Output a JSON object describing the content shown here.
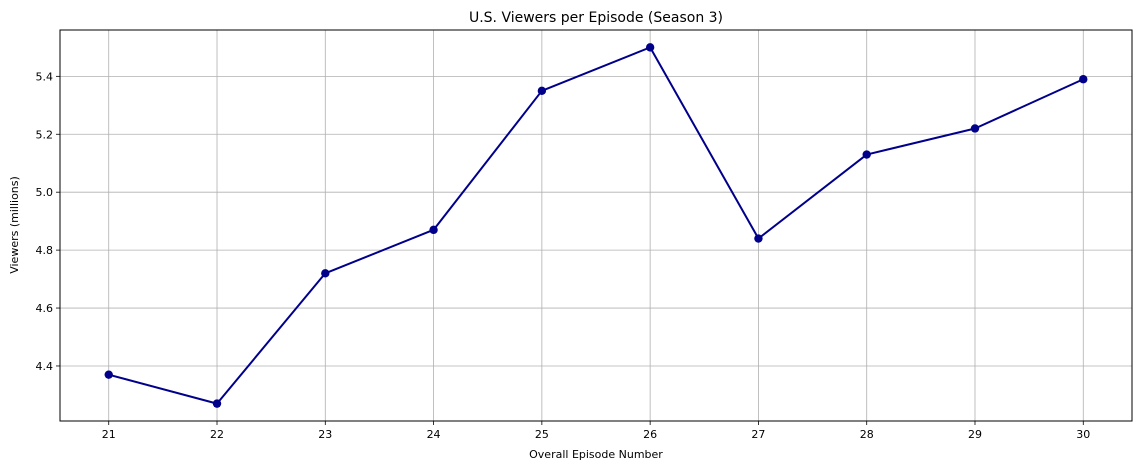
{
  "chart_data": {
    "type": "line",
    "title": "U.S. Viewers per Episode (Season 3)",
    "xlabel": "Overall Episode Number",
    "ylabel": "Viewers (millions)",
    "x": [
      21,
      22,
      23,
      24,
      25,
      26,
      27,
      28,
      29,
      30
    ],
    "series": [
      {
        "values": [
          4.37,
          4.27,
          4.72,
          4.87,
          5.35,
          5.5,
          4.84,
          5.13,
          5.22,
          5.39
        ]
      }
    ],
    "xlim": [
      20.55,
      30.45
    ],
    "ylim": [
      4.21,
      5.56
    ],
    "xticks": [
      "21",
      "22",
      "23",
      "24",
      "25",
      "26",
      "27",
      "28",
      "29",
      "30"
    ],
    "yticks": [
      "4.4",
      "4.6",
      "4.8",
      "5.0",
      "5.2",
      "5.4"
    ],
    "ytick_values": [
      4.4,
      4.6,
      4.8,
      5.0,
      5.2,
      5.4
    ],
    "grid": true,
    "line_color": "#00008b",
    "marker": "circle",
    "grid_color": "#b0b0b0"
  }
}
